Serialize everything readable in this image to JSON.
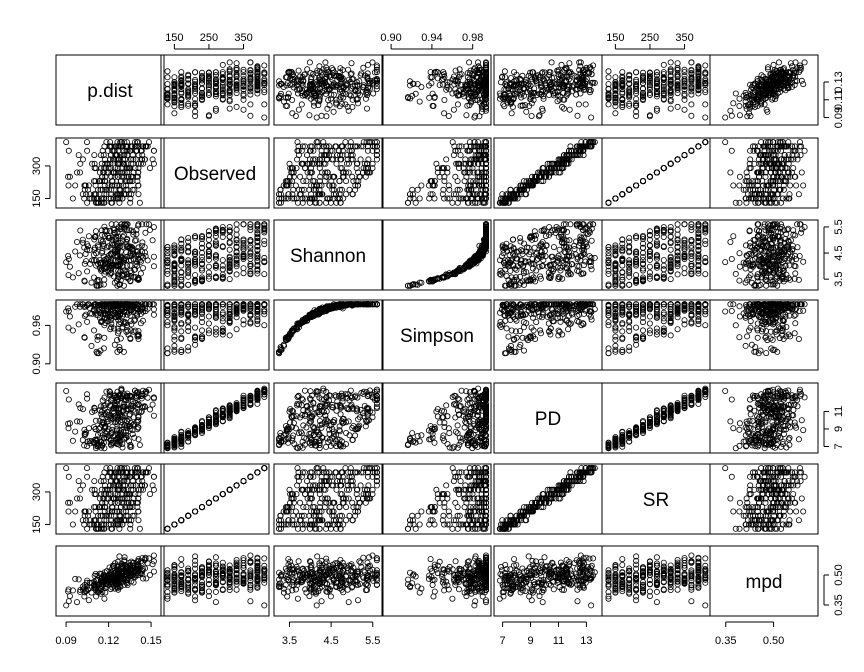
{
  "chart_data": {
    "type": "scatter-matrix",
    "variables": [
      "p.dist",
      "Observed",
      "Shannon",
      "Simpson",
      "PD",
      "SR",
      "mpd"
    ],
    "grid": false,
    "axes": {
      "p.dist": {
        "ticks": [
          "0.09",
          "0.12",
          "0.15"
        ],
        "tick_values": [
          0.09,
          0.12,
          0.15
        ],
        "lim": [
          0.085,
          0.157
        ],
        "right_ticks": [
          "0.09",
          "0.11",
          "0.13"
        ],
        "right_tick_values": [
          0.09,
          0.11,
          0.13
        ]
      },
      "Observed": {
        "ticks": [
          "150",
          "250",
          "350"
        ],
        "tick_values": [
          150,
          250,
          350
        ],
        "lim": [
          120,
          415
        ],
        "left_ticks": [
          "150",
          "300"
        ],
        "left_tick_values": [
          150,
          300
        ]
      },
      "Shannon": {
        "ticks": [
          "3.5",
          "4.5",
          "5.5"
        ],
        "tick_values": [
          3.5,
          4.5,
          5.5
        ],
        "lim": [
          3.2,
          5.65
        ],
        "right_ticks": [
          "3.5",
          "4.5",
          "5.5"
        ],
        "right_tick_values": [
          3.5,
          4.5,
          5.5
        ]
      },
      "Simpson": {
        "ticks": [
          "0.90",
          "0.94",
          "0.98"
        ],
        "tick_values": [
          0.9,
          0.94,
          0.98
        ],
        "lim": [
          0.895,
          0.995
        ],
        "left_ticks": [
          "0.90",
          "0.96"
        ],
        "left_tick_values": [
          0.9,
          0.96
        ]
      },
      "PD": {
        "ticks": [
          "7",
          "9",
          "11",
          "13"
        ],
        "tick_values": [
          7,
          9,
          11,
          13
        ],
        "lim": [
          6.6,
          13.9
        ],
        "right_ticks": [
          "7",
          "9",
          "11"
        ],
        "right_tick_values": [
          7,
          9,
          11
        ]
      },
      "SR": {
        "ticks": [
          "150",
          "250",
          "350"
        ],
        "tick_values": [
          150,
          250,
          350
        ],
        "lim": [
          120,
          415
        ],
        "left_ticks": [
          "150",
          "300"
        ],
        "left_tick_values": [
          150,
          300
        ]
      },
      "mpd": {
        "ticks": [
          "0.35",
          "0.50"
        ],
        "tick_values": [
          0.35,
          0.5
        ],
        "lim": [
          0.31,
          0.63
        ],
        "right_ticks": [
          "0.35",
          "0.50"
        ],
        "right_tick_values": [
          0.35,
          0.5
        ]
      }
    },
    "top_axis_vars": [
      "Observed",
      "Simpson",
      "SR"
    ],
    "bottom_axis_vars": [
      "p.dist",
      "Shannon",
      "PD",
      "mpd"
    ],
    "left_axis_vars": [
      "Observed",
      "Simpson",
      "SR"
    ],
    "right_axis_vars": [
      "p.dist",
      "Shannon",
      "PD",
      "mpd"
    ],
    "n_points_approx": 300
  }
}
